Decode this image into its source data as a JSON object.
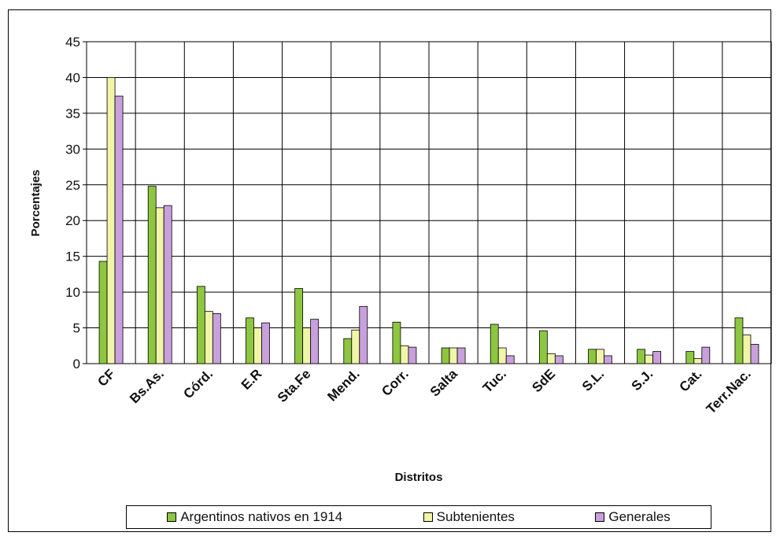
{
  "chart_data": {
    "type": "bar",
    "xlabel": "Distritos",
    "ylabel": "Porcentajes",
    "ylim": [
      0,
      45
    ],
    "yticks": [
      "0",
      "5",
      "10",
      "15",
      "20",
      "25",
      "30",
      "35",
      "40",
      "45"
    ],
    "categories": [
      "CF",
      "Bs.As.",
      "Córd.",
      "E.R",
      "Sta.Fe",
      "Mend.",
      "Corr.",
      "Salta",
      "Tuc.",
      "SdE",
      "S.L.",
      "S.J.",
      "Cat.",
      "Terr.Nac."
    ],
    "series": [
      {
        "name": "Argentinos nativos en 1914",
        "color": "#8dc63f",
        "values": [
          14.3,
          24.8,
          10.8,
          6.4,
          10.5,
          3.5,
          5.8,
          2.2,
          5.5,
          4.6,
          2.0,
          2.0,
          1.7,
          6.4
        ]
      },
      {
        "name": "Subtenientes",
        "color": "#f0f5a8",
        "values": [
          40.0,
          21.8,
          7.3,
          5.0,
          5.0,
          4.7,
          2.5,
          2.2,
          2.2,
          1.4,
          2.0,
          1.2,
          0.7,
          4.0
        ]
      },
      {
        "name": "Generales",
        "color": "#c8a0dc",
        "values": [
          37.4,
          22.1,
          7.0,
          5.7,
          6.2,
          8.0,
          2.3,
          2.2,
          1.1,
          1.1,
          1.1,
          1.7,
          2.3,
          2.7
        ]
      }
    ],
    "grid": true,
    "legend_position": "bottom"
  }
}
